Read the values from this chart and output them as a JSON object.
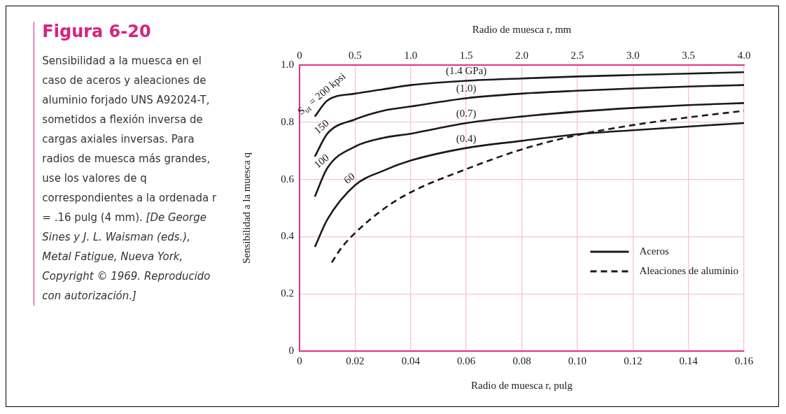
{
  "chart_data": {
    "type": "line",
    "title": "Figura 6-20",
    "xlabel": "Radio de muesca r, pulg",
    "ylabel": "Sensibilidad a la muesca q",
    "x2label": "Radio de muesca r, mm",
    "x": [
      0.0055,
      0.01,
      0.02,
      0.03,
      0.04,
      0.06,
      0.08,
      0.1,
      0.12,
      0.14,
      0.16
    ],
    "series": [
      {
        "name": "Aceros",
        "color": "#1a1a1a",
        "line_style": "solid",
        "values": [
          0.82,
          0.876,
          0.9,
          0.915,
          0.93,
          0.945,
          0.953,
          0.96,
          0.965,
          0.97,
          0.975
        ]
      },
      {
        "color": "#1a1a1a",
        "line_style": "solid",
        "values": [
          0.68,
          0.76,
          0.81,
          0.84,
          0.855,
          0.884,
          0.9,
          0.91,
          0.918,
          0.925,
          0.93
        ]
      },
      {
        "color": "#1a1a1a",
        "line_style": "solid",
        "values": [
          0.54,
          0.64,
          0.715,
          0.745,
          0.76,
          0.797,
          0.82,
          0.837,
          0.85,
          0.86,
          0.867
        ]
      },
      {
        "color": "#1a1a1a",
        "line_style": "solid",
        "values": [
          0.364,
          0.46,
          0.58,
          0.63,
          0.666,
          0.71,
          0.735,
          0.758,
          0.772,
          0.785,
          0.797
        ]
      },
      {
        "name": "Aleaciones de aluminio",
        "color": "#1a1a1a",
        "line_style": "dashed",
        "x": [
          0.0116,
          0.015,
          0.02,
          0.03,
          0.04,
          0.06,
          0.08,
          0.1,
          0.12,
          0.14,
          0.16
        ],
        "values": [
          0.31,
          0.36,
          0.413,
          0.495,
          0.555,
          0.636,
          0.705,
          0.755,
          0.79,
          0.817,
          0.84
        ]
      }
    ],
    "xlim": [
      0,
      0.16
    ],
    "xticks": [
      0,
      0.02,
      0.04,
      0.06,
      0.08,
      {
        "value": 0.1,
        "label": "0.10"
      },
      0.12,
      0.14,
      0.16
    ],
    "x2lim": [
      0,
      4.0
    ],
    "x2ticks": [
      0,
      0.5,
      {
        "value": 1,
        "label": "1.0"
      },
      1.5,
      {
        "value": 2,
        "label": "2.0"
      },
      2.5,
      {
        "value": 3,
        "label": "3.0"
      },
      3.5,
      {
        "value": 4,
        "label": "4.0"
      }
    ],
    "ylim": [
      0,
      1.0
    ],
    "yticks": [
      0,
      0.2,
      0.4,
      0.6,
      0.8,
      {
        "value": 1,
        "label": "1.0"
      }
    ],
    "grid": true,
    "legend": "bottom right",
    "marker": "none",
    "annotations": [
      "Sensibilidad a la muesca en el caso de aceros y aleaciones de aluminio forjado UNS A92024-T, sometidos a flexión inversa de cargas axiales inversas. Para radios de muesca más grandes, use los valores de q correspondientes a la ordenada r = .16 pulg (4 mm).",
      "[De George Sines y J. L. Waisman (eds.), Metal Fatigue, Nueva York, Copyright © 1969. Reproducido con autorización.]",
      {
        "text": "S$_{ut}$ = 200 kpsi",
        "x": 0.01,
        "y": 0.876
      },
      {
        "text": "150",
        "x": 0.01,
        "y": 0.76
      },
      {
        "text": "100",
        "x": 0.01,
        "y": 0.64
      },
      {
        "text": "60",
        "x": 0.02,
        "y": 0.58
      },
      {
        "text": "(1.4 GPa)",
        "x": 0.06,
        "y": 0.945
      },
      {
        "text": "(1.0)",
        "x": 0.06,
        "y": 0.884
      },
      {
        "text": "(0.7)",
        "x": 0.06,
        "y": 0.797
      },
      {
        "text": "(0.4)",
        "x": 0.06,
        "y": 0.71
      }
    ]
  }
}
